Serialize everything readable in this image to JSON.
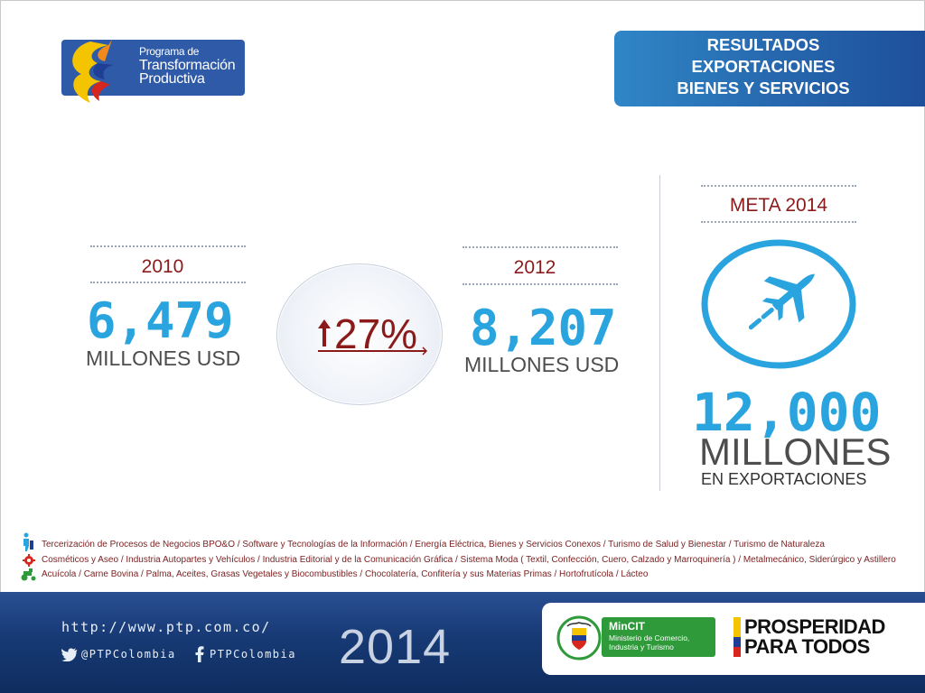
{
  "logo": {
    "line1": "Programa de",
    "line2": "Transformación",
    "line3": "Productiva"
  },
  "title": {
    "line1": "RESULTADOS",
    "line2": "EXPORTACIONES",
    "line3": "BIENES Y SERVICIOS"
  },
  "stats": {
    "y2010": {
      "year": "2010",
      "value": "6,479",
      "unit": "MILLONES USD"
    },
    "growth": {
      "value": "27%"
    },
    "y2012": {
      "year": "2012",
      "value": "8,207",
      "unit": "MILLONES USD"
    },
    "goal": {
      "label": "META 2014",
      "value": "12,000",
      "unit": "MILLONES",
      "sub": "EN EXPORTACIONES"
    }
  },
  "sectors": [
    "Tercerización de Procesos de Negocios BPO&O / Software y Tecnologías de la Información / Energía Eléctrica, Bienes y Servicios Conexos / Turismo de Salud y Bienestar / Turismo de Naturaleza",
    "Cosméticos y Aseo / Industria Autopartes y Vehículos / Industria Editorial y de la Comunicación Gráfica / Sistema Moda ( Textil, Confección, Cuero, Calzado y Marroquinería ) / Metalmecánico, Siderúrgico y Astillero",
    "Acuícola / Carne Bovina / Palma, Aceites, Grasas Vegetales y Biocombustibles / Chocolatería, Confitería y sus Materias Primas / Hortofrutícola / Lácteo"
  ],
  "footer": {
    "url": "http://www.ptp.com.co/",
    "twitter": "@PTPColombia",
    "facebook": "PTPColombia",
    "year": "2014",
    "mincit": {
      "name": "MinCIT",
      "line1": "Ministerio de Comercio,",
      "line2": "Industria y Turismo"
    },
    "prosperidad": {
      "line1": "PROSPERIDAD",
      "line2": "PARA TODOS"
    }
  },
  "colors": {
    "accent_blue": "#2aa4df",
    "dark_red": "#8b1a1a",
    "navy": "#173a75",
    "gov_green": "#2f9a3a",
    "colombia_yellow": "#f5c400",
    "colombia_blue": "#1f3f95",
    "colombia_red": "#d7261e"
  }
}
